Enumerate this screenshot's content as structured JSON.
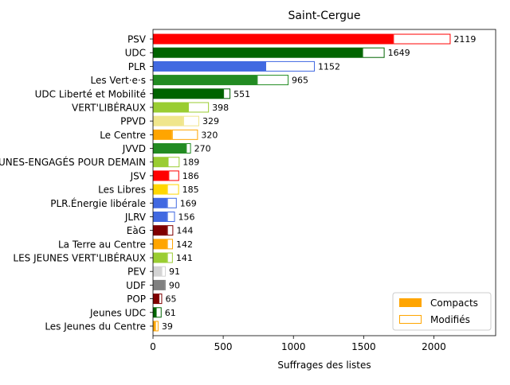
{
  "chart_data": {
    "type": "bar",
    "orientation": "horizontal",
    "stacked": true,
    "title": "Saint-Cergue",
    "xlabel": "Suffrages des listes",
    "ylabel": "",
    "xlim": [
      0,
      2440
    ],
    "xticks": [
      0,
      500,
      1000,
      1500,
      2000
    ],
    "grid": false,
    "legend_position": "lower-right",
    "categories": [
      "PSV",
      "UDC",
      "PLR",
      "Les Vert·e·s",
      "UDC Liberté et Mobilité",
      "VERT'LIBÉRAUX",
      "PPVD",
      "Le Centre",
      "JVVD",
      "LES JEUNES-ENGAGÉS POUR DEMAIN",
      "JSV",
      "Les Libres",
      "PLR.Énergie libérale",
      "JLRV",
      "EàG",
      "La Terre au Centre",
      "LES JEUNES VERT'LIBÉRAUX",
      "PEV",
      "UDF",
      "POP",
      "Jeunes UDC",
      "Les Jeunes du Centre"
    ],
    "totals": [
      2119,
      1649,
      1152,
      965,
      551,
      398,
      329,
      320,
      270,
      189,
      186,
      185,
      169,
      156,
      144,
      142,
      141,
      91,
      90,
      65,
      61,
      39
    ],
    "series": [
      {
        "name": "Compacts",
        "values": [
          1710,
          1490,
          800,
          740,
          500,
          250,
          215,
          135,
          235,
          105,
          110,
          100,
          100,
          100,
          100,
          100,
          100,
          60,
          80,
          40,
          20,
          15
        ]
      },
      {
        "name": "Modifiés",
        "values": [
          409,
          159,
          352,
          225,
          51,
          148,
          114,
          185,
          35,
          84,
          76,
          85,
          69,
          56,
          44,
          42,
          41,
          31,
          10,
          25,
          41,
          24
        ]
      }
    ],
    "colors": [
      "#ff0000",
      "#006400",
      "#4169e1",
      "#228b22",
      "#006400",
      "#9acd32",
      "#f0e68c",
      "#ffa500",
      "#228b22",
      "#9acd32",
      "#ff0000",
      "#ffd700",
      "#4169e1",
      "#4169e1",
      "#800000",
      "#ffa500",
      "#9acd32",
      "#d3d3d3",
      "#808080",
      "#800000",
      "#006400",
      "#ffa500"
    ],
    "legend": {
      "compact_label": "Compacts",
      "modified_label": "Modifiés",
      "compact_color": "#ffa500",
      "modified_color": "#ffa500"
    }
  }
}
